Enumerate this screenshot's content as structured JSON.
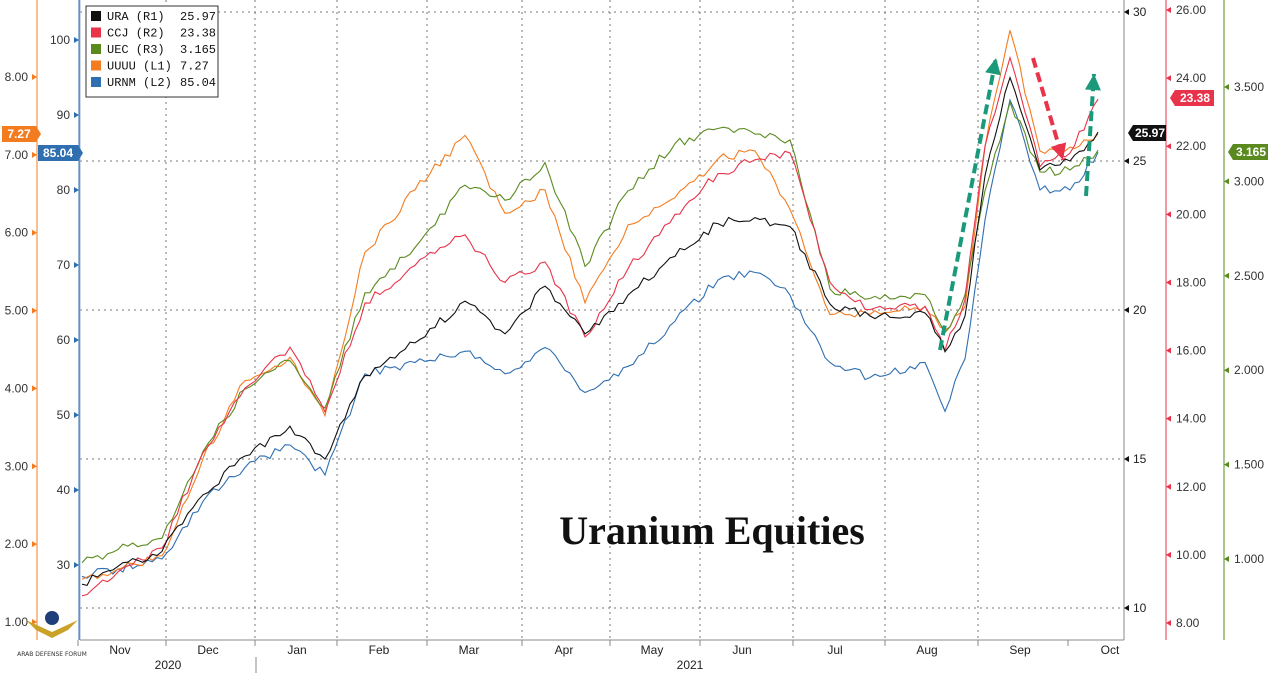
{
  "chart_data": {
    "type": "line",
    "title": "Uranium Equities",
    "x_ticks": [
      "Nov",
      "Dec",
      "Jan",
      "Feb",
      "Mar",
      "Apr",
      "May",
      "Jun",
      "Jul",
      "Aug",
      "Sep",
      "Oct"
    ],
    "year_labels": [
      "2020",
      "2021"
    ],
    "axes": {
      "L1": {
        "ticks": [
          "1.00",
          "2.00",
          "3.00",
          "4.00",
          "5.00",
          "6.00",
          "7.00",
          "8.00"
        ],
        "range": [
          1.0,
          8.9
        ],
        "color": "#f47c20"
      },
      "L2": {
        "ticks": [
          "30",
          "40",
          "50",
          "60",
          "70",
          "80",
          "90",
          "100"
        ],
        "range": [
          22,
          106
        ],
        "color": "#2f6fb0"
      },
      "R1": {
        "ticks": [
          "10",
          "15",
          "20",
          "25",
          "30"
        ],
        "range": [
          9.5,
          30.5
        ],
        "color": "#111111"
      },
      "R2": {
        "ticks": [
          "8.00",
          "10.00",
          "12.00",
          "14.00",
          "16.00",
          "18.00",
          "20.00",
          "22.00",
          "24.00",
          "26.00"
        ],
        "range": [
          7.5,
          26.1
        ],
        "color": "#e8334a"
      },
      "R3": {
        "ticks": [
          "1.000",
          "1.500",
          "2.000",
          "2.500",
          "3.000",
          "3.500"
        ],
        "range": [
          0.68,
          3.78
        ],
        "color": "#5a8a1e"
      }
    },
    "x_dates": [
      "Oct 26",
      "Nov 9",
      "Nov 23",
      "Dec 7",
      "Dec 21",
      "Jan 4",
      "Jan 18",
      "Feb 1",
      "Feb 15",
      "Mar 1",
      "Mar 15",
      "Mar 29",
      "Apr 12",
      "Apr 26",
      "May 10",
      "May 24",
      "Jun 7",
      "Jun 21",
      "Jul 5",
      "Jul 19",
      "Aug 2",
      "Aug 16",
      "Aug 23",
      "Aug 30",
      "Sep 6",
      "Sep 13",
      "Sep 20",
      "Sep 27"
    ],
    "series": [
      {
        "name": "URA (R1)",
        "axis": "R1",
        "last": "25.97",
        "color": "#111111",
        "values": [
          10.8,
          11.4,
          11.9,
          13.8,
          15.1,
          16.1,
          15.0,
          17.8,
          18.9,
          20.3,
          19.2,
          20.8,
          19.2,
          20.5,
          21.8,
          22.9,
          23.1,
          22.8,
          20.2,
          19.8,
          19.9,
          18.6,
          19.8,
          24.5,
          27.8,
          24.7,
          25.0,
          25.97
        ]
      },
      {
        "name": "CCJ (R2)",
        "axis": "R2",
        "last": "23.38",
        "color": "#e8334a",
        "values": [
          8.8,
          9.5,
          10.2,
          13.0,
          14.9,
          16.1,
          14.2,
          17.4,
          18.5,
          19.4,
          18.0,
          18.6,
          16.4,
          18.4,
          20.0,
          21.2,
          21.6,
          21.8,
          18.0,
          17.2,
          17.3,
          16.0,
          17.5,
          22.0,
          24.6,
          21.4,
          21.8,
          23.38
        ]
      },
      {
        "name": "UEC (R3)",
        "axis": "R3",
        "last": "3.165",
        "color": "#5a8a1e",
        "values": [
          0.98,
          1.05,
          1.11,
          1.57,
          1.9,
          2.05,
          1.8,
          2.41,
          2.65,
          2.98,
          2.9,
          3.1,
          2.55,
          2.95,
          3.2,
          3.28,
          3.25,
          3.22,
          2.43,
          2.38,
          2.4,
          2.2,
          2.4,
          2.95,
          3.42,
          3.05,
          3.06,
          3.165
        ]
      },
      {
        "name": "UUUU (L1)",
        "axis": "L1",
        "last": "7.27",
        "color": "#f47c20",
        "values": [
          1.55,
          1.68,
          1.85,
          3.1,
          4.1,
          4.4,
          3.65,
          5.75,
          6.55,
          7.25,
          6.25,
          6.55,
          5.1,
          6.1,
          6.45,
          6.95,
          7.05,
          6.3,
          4.95,
          4.95,
          5.05,
          4.75,
          5.05,
          7.1,
          8.6,
          7.05,
          7.1,
          7.27
        ]
      },
      {
        "name": "URNM (L2)",
        "axis": "L2",
        "last": "85.04",
        "color": "#2f6fb0",
        "values": [
          28.5,
          29.5,
          30.8,
          38.5,
          43.0,
          46.0,
          42.0,
          55.5,
          57.0,
          58.5,
          55.5,
          59.0,
          53.0,
          56.5,
          62.5,
          68.0,
          69.0,
          66.0,
          57.0,
          55.0,
          57.0,
          50.5,
          57.5,
          76.0,
          92.0,
          80.0,
          80.0,
          85.04
        ]
      }
    ],
    "grid": "dashed",
    "legend": "top-left",
    "annotations": [
      "up-arrow-green",
      "down-arrow-red",
      "up-arrow-green"
    ]
  },
  "watermark": {
    "name": "ARAB DEFENSE FORUM"
  }
}
